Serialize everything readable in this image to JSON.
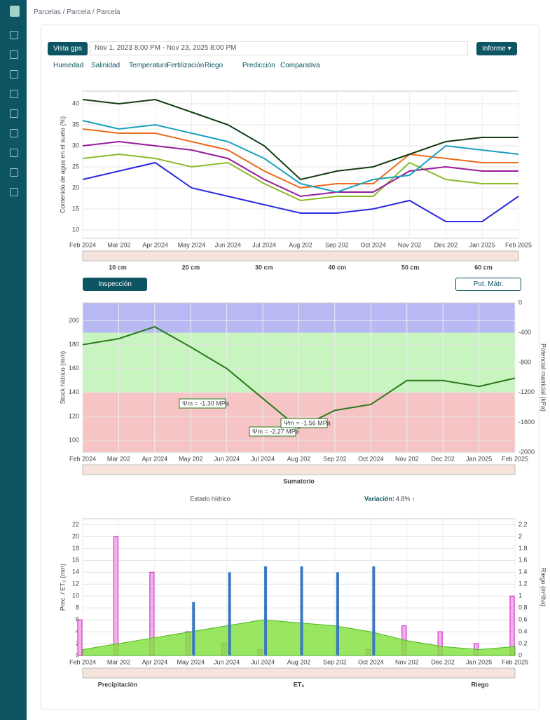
{
  "header": {
    "breadcrumb": "Parcelas / Parcela / Parcela"
  },
  "toolbar": {
    "view_button": "Vista gps",
    "date_range": "Nov 1, 2023 8:00 PM - Nov 23, 2025 8:00 PM",
    "report_button": "Informe ▾"
  },
  "tabs": [
    "Humedad",
    "Salinidad",
    "Temperatura",
    "Fertilización",
    "Riego",
    "Predicción",
    "Comparativa"
  ],
  "inspection_button": "Inspección",
  "potential_button": "Pot. Mátr.",
  "stats": {
    "label": "Estado hídrico",
    "variation_label": "Variación:",
    "variation_value": "4.8% ↑"
  },
  "chart_data": [
    {
      "type": "line",
      "ylabel": "Contenido de agua en el suelo (%)",
      "categories": [
        "Feb 2024",
        "Mar 202",
        "Apr 2024",
        "May 2024",
        "Jun 2024",
        "Jul 2024",
        "Aug 202",
        "Sep 202",
        "Oct 2024",
        "Nov 202",
        "Dec 202",
        "Jan 2025",
        "Feb 2025"
      ],
      "ylim": [
        8,
        43
      ],
      "yticks": [
        10,
        15,
        20,
        25,
        30,
        35,
        40
      ],
      "grid": true,
      "series": [
        {
          "name": "10 cm",
          "color": "#2b2be0",
          "values": [
            22,
            24,
            26,
            20,
            18,
            16,
            14,
            14,
            15,
            17,
            12,
            12,
            18
          ]
        },
        {
          "name": "20 cm",
          "color": "#8cbc2c",
          "values": [
            27,
            28,
            27,
            25,
            26,
            21,
            17,
            18,
            18,
            26,
            22,
            21,
            21
          ]
        },
        {
          "name": "30 cm",
          "color": "#9a1a9a",
          "values": [
            30,
            31,
            30,
            29,
            27,
            22,
            18,
            19,
            19,
            24,
            25,
            24,
            24
          ]
        },
        {
          "name": "40 cm",
          "color": "#ee6a1c",
          "values": [
            34,
            33,
            33,
            31,
            29,
            24,
            20,
            21,
            21,
            28,
            27,
            26,
            26
          ]
        },
        {
          "name": "50 cm",
          "color": "#1aa0c0",
          "values": [
            36,
            34,
            35,
            33,
            31,
            27,
            21,
            19,
            22,
            23,
            30,
            29,
            28
          ]
        },
        {
          "name": "60 cm",
          "color": "#143c14",
          "values": [
            41,
            40,
            41,
            38,
            35,
            30,
            22,
            24,
            25,
            28,
            31,
            32,
            32
          ]
        }
      ]
    },
    {
      "type": "line",
      "ylabel": "Stock hídrico (mm)",
      "y2label": "Potencial matricial (kPa)",
      "categories": [
        "Feb 2024",
        "Mar 202",
        "Apr 2024",
        "May 202",
        "Jun 2024",
        "Jul 2024",
        "Aug 202",
        "Sep 202",
        "Oct 2024",
        "Nov 202",
        "Dec 202",
        "Jan 2025",
        "Feb 2025"
      ],
      "ylim": [
        90,
        215
      ],
      "yticks": [
        100,
        120,
        140,
        160,
        180,
        200
      ],
      "y2lim": [
        -2000,
        0
      ],
      "y2ticks": [
        0,
        -400,
        -800,
        -1200,
        -1600,
        -2000
      ],
      "grid": true,
      "bands": [
        {
          "from": 190,
          "to": 215,
          "color": "#b8b8f4"
        },
        {
          "from": 140,
          "to": 190,
          "color": "#c8f4c0"
        },
        {
          "from": 90,
          "to": 140,
          "color": "#f6c4c4"
        }
      ],
      "annotations": [
        "Ψm = -1.30 MPa",
        "Ψm = -2.27 MPa",
        "Ψm = -1.56 MPa"
      ],
      "series": [
        {
          "name": "Sumatorio",
          "color": "#2a7a1a",
          "values": [
            180,
            185,
            195,
            178,
            160,
            135,
            110,
            125,
            130,
            150,
            150,
            145,
            152
          ]
        }
      ]
    },
    {
      "type": "bar",
      "ylabel": "Prec. / ET₀ (mm)",
      "y2label": "Riego (m³/ha)",
      "categories": [
        "Feb 2024",
        "Mar 202",
        "Apr 2024",
        "May 2024",
        "Jun 2024",
        "Jul 2024",
        "Aug 202",
        "Sep 202",
        "Oct 2024",
        "Nov 202",
        "Dec 202",
        "Jan 2025",
        "Feb 2025"
      ],
      "ylim": [
        0,
        23
      ],
      "yticks": [
        0,
        2,
        4,
        6,
        8,
        10,
        12,
        14,
        16,
        18,
        20,
        22
      ],
      "y2lim": [
        0,
        2.3
      ],
      "y2ticks": [
        0,
        0.2,
        0.4,
        0.6,
        0.8,
        1,
        1.2,
        1.4,
        1.6,
        1.8,
        2,
        2.2
      ],
      "grid": true,
      "series": [
        {
          "name": "Precipitación",
          "type": "bar",
          "color": "#d63cc8",
          "values": [
            6,
            20,
            14,
            4,
            2,
            1,
            0,
            0,
            1,
            5,
            4,
            2,
            10
          ]
        },
        {
          "name": "ET₀",
          "type": "area",
          "color": "#7ee03a",
          "values": [
            1,
            2,
            3,
            4,
            5,
            6,
            5.5,
            5,
            4,
            2.5,
            1.5,
            1,
            1.5
          ]
        },
        {
          "name": "Riego",
          "type": "bar",
          "axis": "y2",
          "color": "#3a78c0",
          "values": [
            0,
            0,
            0,
            0.9,
            1.4,
            1.5,
            1.5,
            1.4,
            1.5,
            0,
            0,
            0,
            0
          ]
        }
      ]
    }
  ]
}
